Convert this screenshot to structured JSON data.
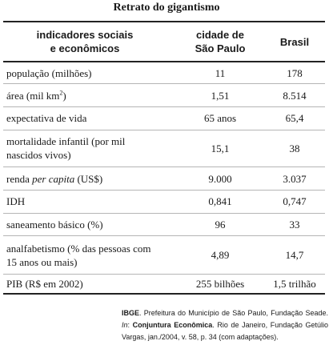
{
  "title": "Retrato do gigantismo",
  "table": {
    "headers": {
      "indicators_line1": "indicadores sociais",
      "indicators_line2": "e econômicos",
      "city_line1": "cidade de",
      "city_line2": "São Paulo",
      "country": "Brasil"
    },
    "rows": [
      {
        "label": "população (milhões)",
        "sp": "11",
        "br": "178"
      },
      {
        "label_pre": "área (mil km",
        "label_sup": "2",
        "label_post": ")",
        "sp": "1,51",
        "br": "8.514"
      },
      {
        "label": "expectativa de vida",
        "sp": "65 anos",
        "br": "65,4"
      },
      {
        "label_line1": "mortalidade infantil (por mil",
        "label_line2": "nascidos vivos)",
        "sp": "15,1",
        "br": "38"
      },
      {
        "label_pre": "renda ",
        "label_em": "per capita",
        "label_post": " (US$)",
        "sp": "9.000",
        "br": "3.037"
      },
      {
        "label": "IDH",
        "sp": "0,841",
        "br": "0,747"
      },
      {
        "label": "saneamento básico (%)",
        "sp": "96",
        "br": "33"
      },
      {
        "label_line1": "analfabetismo (% das pessoas com",
        "label_line2": "15 anos ou mais)",
        "sp": "4,89",
        "br": "14,7"
      },
      {
        "label": "PIB (R$ em 2002)",
        "sp": "255 bilhões",
        "br": "1,5 trilhão"
      }
    ]
  },
  "source": {
    "org": "IBGE",
    "text1": ". Prefeitura do Município de São Paulo, Fundação Seade.",
    "in_label": "In",
    "colon": ": ",
    "journal": "Conjuntura Econômica",
    "text2": ". Rio de Janeiro, Fundação Getúlio Vargas, jan./2004, v. 58, p. 34 (com adaptações)."
  }
}
